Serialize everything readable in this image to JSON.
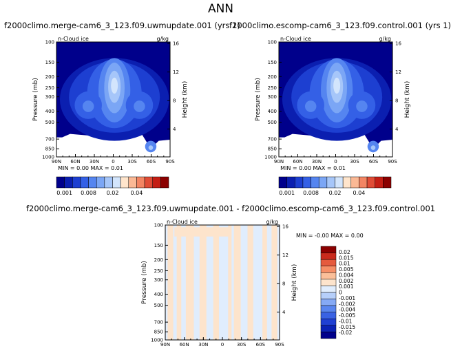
{
  "title": "ANN",
  "colors": {
    "cloud_ice_scale": [
      "#00008b",
      "#0b1fb0",
      "#1d3fd1",
      "#3460e6",
      "#5585f0",
      "#7ba6f5",
      "#a6c6f9",
      "#d3e5fc",
      "#ffe5cc",
      "#fbb995",
      "#f38563",
      "#e04c36",
      "#c41e14",
      "#8b0000"
    ],
    "diff_scale": [
      "#00008b",
      "#0b22b5",
      "#2040d3",
      "#3a62e3",
      "#5a86ef",
      "#86aaf5",
      "#b6cffa",
      "#e0edfd",
      "#fde4cc",
      "#fbbf99",
      "#f68e66",
      "#e55a3d",
      "#c92a1c",
      "#8b0000"
    ]
  },
  "chart_data": [
    {
      "type": "heatmap",
      "case": "f2000climo.merge-cam6_3_123.f09.uwmupdate.001 (yrs 1)",
      "variable": "n-Cloud ice",
      "units": "g/kg",
      "ylabel": "Pressure (mb)",
      "ylabel_right": "Height (km)",
      "x_ticks": [
        "90N",
        "60N",
        "30N",
        "0",
        "30S",
        "60S",
        "90S"
      ],
      "y_ticks": [
        "100",
        "150",
        "200",
        "250",
        "300",
        "400",
        "500",
        "700",
        "850",
        "1000"
      ],
      "y_ticks_right": [
        "16",
        "12",
        "8",
        "4"
      ],
      "min_label": "MIN =",
      "min_value": "0.00",
      "max_label": "MAX =",
      "max_value": "0.01",
      "colorbar_ticks": [
        "0.001",
        "0.008",
        "0.02",
        "0.04"
      ]
    },
    {
      "type": "heatmap",
      "case": "f2000climo.escomp-cam6_3_123.f09.control.001 (yrs 1)",
      "variable": "n-Cloud ice",
      "units": "g/kg",
      "ylabel": "Pressure (mb)",
      "ylabel_right": "Height (km)",
      "x_ticks": [
        "90N",
        "60N",
        "30N",
        "0",
        "30S",
        "60S",
        "90S"
      ],
      "y_ticks": [
        "100",
        "150",
        "200",
        "250",
        "300",
        "400",
        "500",
        "700",
        "850",
        "1000"
      ],
      "y_ticks_right": [
        "16",
        "12",
        "8",
        "4"
      ],
      "min_label": "MIN =",
      "min_value": "0.00",
      "max_label": "MAX =",
      "max_value": "0.01",
      "colorbar_ticks": [
        "0.001",
        "0.008",
        "0.02",
        "0.04"
      ]
    },
    {
      "type": "heatmap",
      "case": "f2000climo.merge-cam6_3_123.f09.uwmupdate.001 - f2000climo.escomp-cam6_3_123.f09.control.001",
      "variable": "n-Cloud ice",
      "units": "g/kg",
      "ylabel": "Pressure (mb)",
      "ylabel_right": "Height (km)",
      "x_ticks": [
        "90N",
        "60N",
        "30N",
        "0",
        "30S",
        "60S",
        "90S"
      ],
      "y_ticks": [
        "100",
        "150",
        "200",
        "250",
        "300",
        "400",
        "500",
        "700",
        "850",
        "1000"
      ],
      "y_ticks_right": [
        "16",
        "12",
        "8",
        "4"
      ],
      "min_label": "MIN =",
      "min_value": "-0.00",
      "max_label": "MAX =",
      "max_value": "0.00",
      "colorbar_ticks": [
        "0.02",
        "0.015",
        "0.01",
        "0.005",
        "0.004",
        "0.002",
        "0.001",
        "0",
        "-0.001",
        "-0.002",
        "-0.004",
        "-0.005",
        "-0.01",
        "-0.015",
        "-0.02"
      ]
    }
  ]
}
